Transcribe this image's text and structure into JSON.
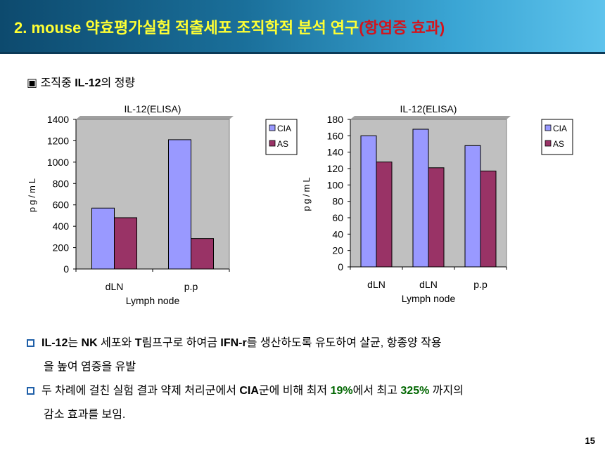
{
  "header": {
    "title_num": "2.",
    "title_main": "mouse 약효평가실험 적출세포 조직학적 분석 연구",
    "title_sub": "(항염증 효과)"
  },
  "section": {
    "marker": "▣",
    "label_pre": "조직중 ",
    "label_bold": "IL-12",
    "label_post": "의 정량"
  },
  "chart_data": [
    {
      "type": "bar",
      "title": "IL-12(ELISA)",
      "categories": [
        "dLN",
        "p.p"
      ],
      "xlabel": "Lymph node",
      "ylabel": "pg/mL",
      "ylim": [
        0,
        1400
      ],
      "yticks": [
        0,
        200,
        400,
        600,
        800,
        1000,
        1200,
        1400
      ],
      "series": [
        {
          "name": "CIA",
          "color": "#9999ff",
          "values": [
            570,
            1210
          ]
        },
        {
          "name": "AS",
          "color": "#993366",
          "values": [
            480,
            285
          ]
        }
      ],
      "legend": "right",
      "grid": false
    },
    {
      "type": "bar",
      "title": "IL-12(ELISA)",
      "categories": [
        "dLN",
        "dLN",
        "p.p"
      ],
      "xlabel": "Lymph node",
      "ylabel": "pg/mL",
      "ylim": [
        0,
        180
      ],
      "yticks": [
        0,
        20,
        40,
        60,
        80,
        100,
        120,
        140,
        160,
        180
      ],
      "series": [
        {
          "name": "CIA",
          "color": "#9999ff",
          "values": [
            160,
            168,
            148
          ]
        },
        {
          "name": "AS",
          "color": "#993366",
          "values": [
            128,
            121,
            117
          ]
        }
      ],
      "legend": "right",
      "grid": false
    }
  ],
  "para1": {
    "bold1": "IL-12",
    "t1": "는 ",
    "bold2": "NK",
    "t2": " 세포와 ",
    "bold3": "T",
    "t3": "림프구로 하여금 ",
    "bold4": "IFN-r",
    "t4": "를 생산하도록 유도하여 살균, 항종양 작용",
    "line2": "을 높여 염증을 유발"
  },
  "para2": {
    "t1": "두 차례에 걸친 실험 결과 약제 처리군에서 ",
    "bold1": "CIA",
    "t2": "군에 비해 최저 ",
    "bold2": "19%",
    "t3": "에서 최고 ",
    "bold3": "325%",
    "t4": " 까지의",
    "line2": "감소 효과를 보임."
  },
  "page_number": "15"
}
